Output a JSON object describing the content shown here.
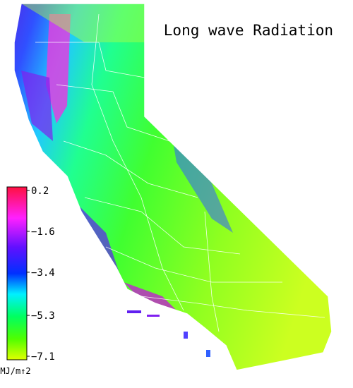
{
  "title": "Long wave Radiation",
  "colorbar": {
    "lim": [
      -7.1,
      0.2
    ],
    "ticks": [
      {
        "value": 0.2,
        "label": "0.2"
      },
      {
        "value": -1.6,
        "label": "−1.6"
      },
      {
        "value": -3.4,
        "label": "−3.4"
      },
      {
        "value": -5.3,
        "label": "−5.3"
      },
      {
        "value": -7.1,
        "label": "−7.1"
      }
    ],
    "unit": "MJ/m↑2"
  }
}
